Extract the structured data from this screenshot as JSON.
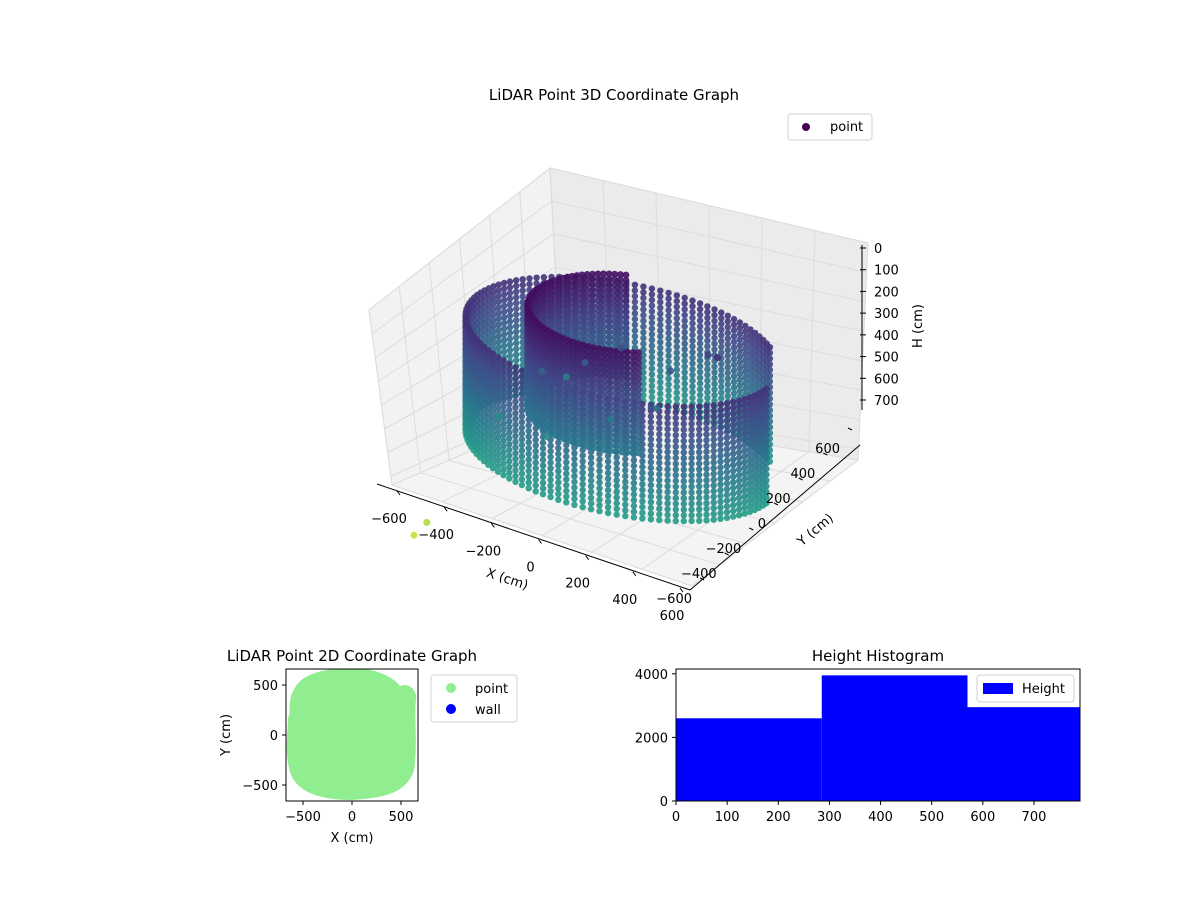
{
  "chart_data": [
    {
      "type": "scatter",
      "projection": "3d",
      "title": "LiDAR Point 3D Coordinate Graph",
      "xlabel": "X (cm)",
      "ylabel": "Y (cm)",
      "zlabel": "H (cm)",
      "xticks": [
        "−600",
        "−400",
        "−200",
        "0",
        "200",
        "400",
        "600"
      ],
      "yticks": [
        "−600",
        "−400",
        "−200",
        "0",
        "200",
        "400",
        "600"
      ],
      "zticks": [
        "0",
        "100",
        "200",
        "300",
        "400",
        "500",
        "600",
        "700"
      ],
      "xlim": [
        -650,
        650
      ],
      "ylim": [
        -650,
        650
      ],
      "zlim": [
        0,
        790
      ],
      "z_axis_inverted": true,
      "colormap": "viridis",
      "legend": {
        "placement": "upper right",
        "entries": [
          {
            "label": "point",
            "color": "#440154"
          }
        ]
      },
      "series": [
        {
          "name": "point",
          "shape": "outer wall ring",
          "radius": 600,
          "h_range": [
            190,
            720
          ]
        },
        {
          "name": "point",
          "shape": "inner curved wall",
          "radius": 420,
          "h_range": [
            60,
            520
          ]
        },
        {
          "name": "point",
          "shape": "sparse scattered points",
          "h_range": [
            130,
            680
          ]
        }
      ],
      "grid": true
    },
    {
      "type": "scatter",
      "title": "LiDAR Point 2D Coordinate Graph",
      "xlabel": "X (cm)",
      "ylabel": "Y (cm)",
      "xticks": [
        "−500",
        "0",
        "500"
      ],
      "yticks": [
        "500",
        "0",
        "−500"
      ],
      "xlim": [
        -680,
        680
      ],
      "ylim": [
        -680,
        680
      ],
      "legend": {
        "placement": "outside right",
        "entries": [
          {
            "label": "point",
            "color": "#90ee90"
          },
          {
            "label": "wall",
            "color": "#0000ff"
          }
        ]
      },
      "series": [
        {
          "name": "point",
          "color": "#90ee90",
          "shape": "filled disc",
          "radius": 630
        },
        {
          "name": "wall",
          "color": "#0000ff",
          "points": []
        }
      ],
      "grid": false
    },
    {
      "type": "bar",
      "title": "Height Histogram",
      "xlabel": "",
      "ylabel": "",
      "bins": [
        [
          0,
          285
        ],
        [
          285,
          570
        ],
        [
          570,
          790
        ]
      ],
      "values": [
        2600,
        3950,
        2950
      ],
      "xlim": [
        0,
        790
      ],
      "ylim": [
        0,
        4150
      ],
      "xticks": [
        "0",
        "100",
        "200",
        "300",
        "400",
        "500",
        "600",
        "700"
      ],
      "yticks": [
        "0",
        "2000",
        "4000"
      ],
      "color": "#0000ff",
      "legend": {
        "placement": "upper right",
        "entries": [
          {
            "label": "Height",
            "color": "#0000ff"
          }
        ]
      },
      "grid": false
    }
  ]
}
